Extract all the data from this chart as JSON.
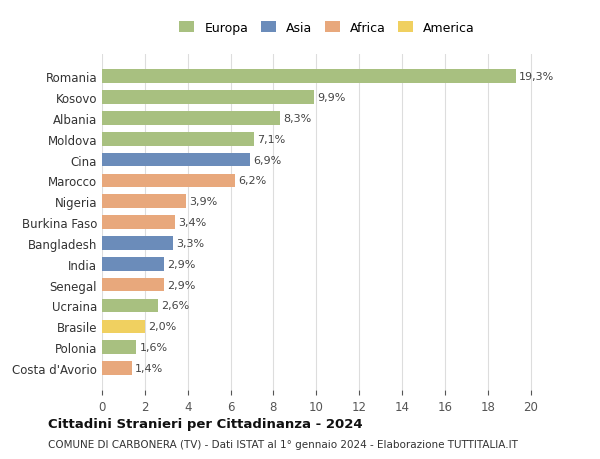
{
  "countries": [
    "Romania",
    "Kosovo",
    "Albania",
    "Moldova",
    "Cina",
    "Marocco",
    "Nigeria",
    "Burkina Faso",
    "Bangladesh",
    "India",
    "Senegal",
    "Ucraina",
    "Brasile",
    "Polonia",
    "Costa d'Avorio"
  ],
  "values": [
    19.3,
    9.9,
    8.3,
    7.1,
    6.9,
    6.2,
    3.9,
    3.4,
    3.3,
    2.9,
    2.9,
    2.6,
    2.0,
    1.6,
    1.4
  ],
  "labels": [
    "19,3%",
    "9,9%",
    "8,3%",
    "7,1%",
    "6,9%",
    "6,2%",
    "3,9%",
    "3,4%",
    "3,3%",
    "2,9%",
    "2,9%",
    "2,6%",
    "2,0%",
    "1,6%",
    "1,4%"
  ],
  "continents": [
    "Europa",
    "Europa",
    "Europa",
    "Europa",
    "Asia",
    "Africa",
    "Africa",
    "Africa",
    "Asia",
    "Asia",
    "Africa",
    "Europa",
    "America",
    "Europa",
    "Africa"
  ],
  "colors": {
    "Europa": "#a8c080",
    "Asia": "#6b8cba",
    "Africa": "#e8a87c",
    "America": "#f0d060"
  },
  "legend_order": [
    "Europa",
    "Asia",
    "Africa",
    "America"
  ],
  "xlim": [
    0,
    21
  ],
  "xticks": [
    0,
    2,
    4,
    6,
    8,
    10,
    12,
    14,
    16,
    18,
    20
  ],
  "title": "Cittadini Stranieri per Cittadinanza - 2024",
  "subtitle": "COMUNE DI CARBONERA (TV) - Dati ISTAT al 1° gennaio 2024 - Elaborazione TUTTITALIA.IT",
  "bg_color": "#ffffff",
  "grid_color": "#dddddd",
  "bar_height": 0.65
}
